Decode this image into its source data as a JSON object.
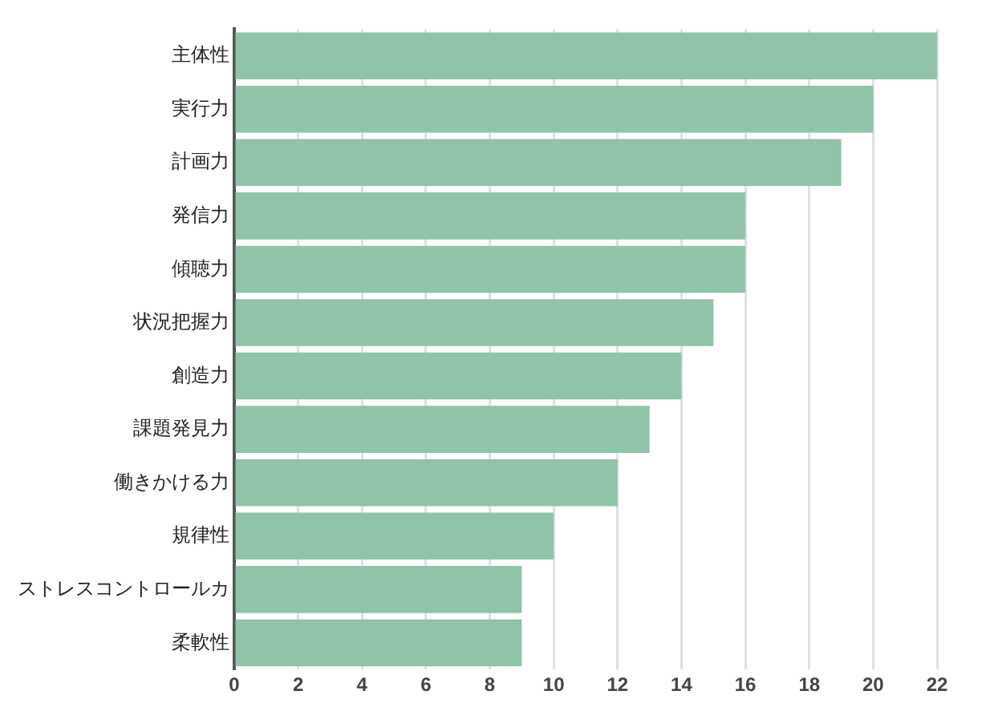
{
  "chart_data": {
    "type": "bar",
    "orientation": "horizontal",
    "categories": [
      "主体性",
      "実行力",
      "計画力",
      "発信力",
      "傾聴力",
      "状況把握力",
      "創造力",
      "課題発見力",
      "働きかける力",
      "規律性",
      "ストレスコントロールカ",
      "柔軟性"
    ],
    "values": [
      22,
      20,
      19,
      16,
      16,
      15,
      14,
      13,
      12,
      10,
      9,
      9
    ],
    "color": "#8fc4a8",
    "xlim": [
      0,
      22
    ],
    "xticks": [
      0,
      2,
      4,
      6,
      8,
      10,
      12,
      14,
      16,
      18,
      20,
      22
    ],
    "grid": "x"
  }
}
